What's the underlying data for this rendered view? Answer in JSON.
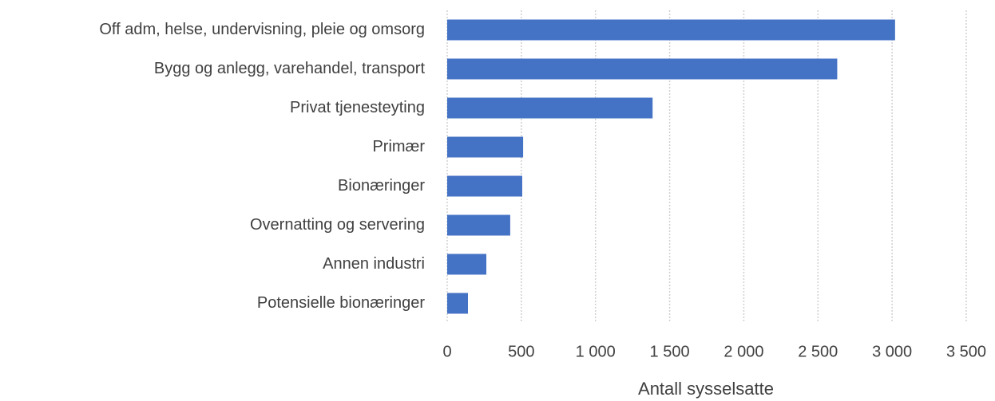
{
  "chart_data": {
    "type": "bar",
    "orientation": "horizontal",
    "categories": [
      "Off adm, helse, undervisning, pleie og omsorg",
      "Bygg og anlegg, varehandel, transport",
      "Privat tjenesteyting",
      "Primær",
      "Bionæringer",
      "Overnatting og servering",
      "Annen industri",
      "Potensielle bionæringer"
    ],
    "values": [
      3020,
      2630,
      1385,
      512,
      506,
      425,
      264,
      140
    ],
    "color": "#4472c4",
    "xlabel": "Antall sysselsatte",
    "xlim": [
      0,
      3500
    ],
    "xticks": [
      0,
      500,
      {
        "value": 1000,
        "label": "1 000"
      },
      {
        "value": 1500,
        "label": "1 500"
      },
      {
        "value": 2000,
        "label": "2 000"
      },
      {
        "value": 2500,
        "label": "2 500"
      },
      {
        "value": 3000,
        "label": "3 000"
      },
      {
        "value": 3500,
        "label": "3 500"
      }
    ],
    "grid": true
  }
}
